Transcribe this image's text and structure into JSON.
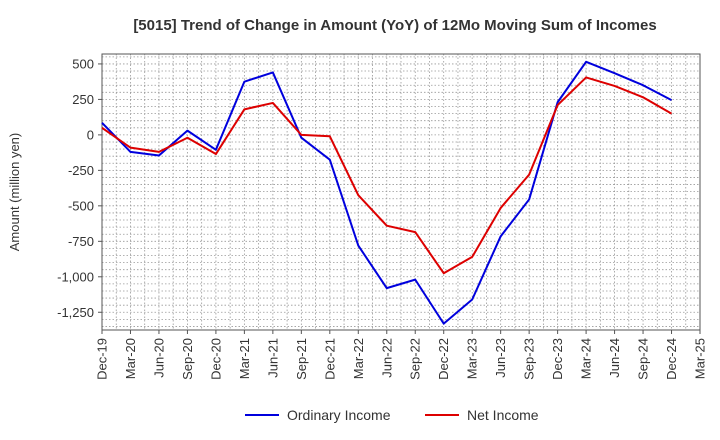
{
  "chart_data": {
    "type": "line",
    "title": "[5015]  Trend of Change in Amount (YoY) of 12Mo Moving Sum of Incomes",
    "ylabel": "Amount (million yen)",
    "xlabel": "",
    "ylim": [
      -1375,
      570
    ],
    "yticks": [
      500,
      250,
      0,
      -250,
      -500,
      -750,
      -1000,
      -1250
    ],
    "ytick_labels": [
      "500",
      "250",
      "0",
      "-250",
      "-500",
      "-750",
      "-1,000",
      "-1,250"
    ],
    "categories": [
      "Dec-19",
      "Mar-20",
      "Jun-20",
      "Sep-20",
      "Dec-20",
      "Mar-21",
      "Jun-21",
      "Sep-21",
      "Dec-21",
      "Mar-22",
      "Jun-22",
      "Sep-22",
      "Dec-22",
      "Mar-23",
      "Jun-23",
      "Sep-23",
      "Dec-23",
      "Mar-24",
      "Jun-24",
      "Sep-24",
      "Dec-24",
      "Mar-25"
    ],
    "grid": true,
    "legend_position": "bottom",
    "series": [
      {
        "name": "Ordinary Income",
        "color": "#0000dd",
        "values": [
          85,
          -120,
          -145,
          30,
          -105,
          375,
          440,
          -20,
          -175,
          -780,
          -1080,
          -1020,
          -1330,
          -1160,
          -715,
          -455,
          230,
          515,
          435,
          350,
          245,
          null
        ]
      },
      {
        "name": "Net Income",
        "color": "#dd0000",
        "values": [
          50,
          -90,
          -120,
          -20,
          -135,
          180,
          225,
          0,
          -10,
          -425,
          -640,
          -685,
          -975,
          -860,
          -515,
          -280,
          210,
          405,
          345,
          265,
          150,
          null
        ]
      }
    ]
  }
}
